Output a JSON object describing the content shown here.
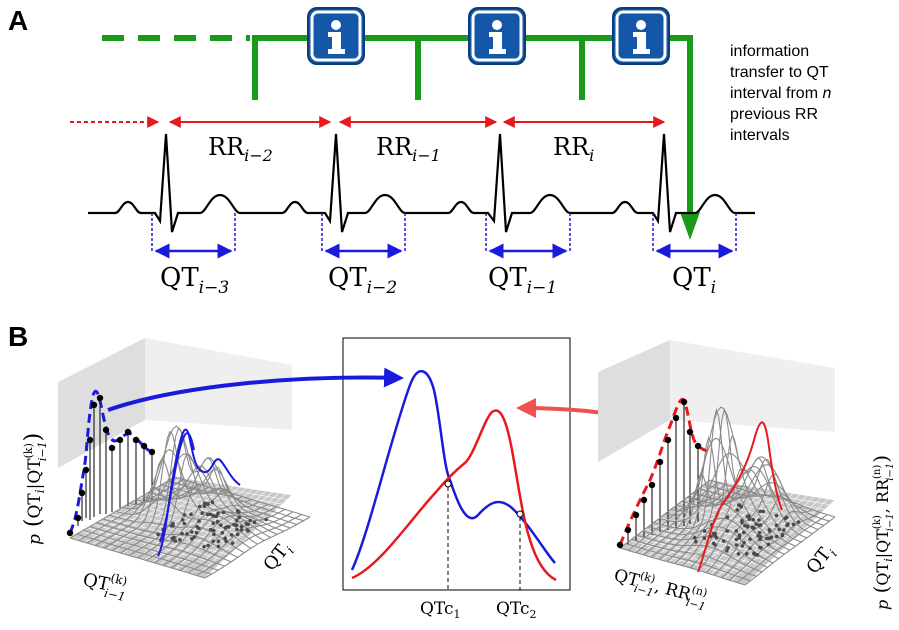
{
  "panel_a": {
    "label": "A",
    "info_icon_glyph": "i",
    "annotation_lines": [
      "information",
      "transfer to QT",
      "interval from ",
      "previous RR",
      "intervals"
    ],
    "annotation_n": "n",
    "rr_labels": [
      {
        "base": "RR",
        "sub": "i−2"
      },
      {
        "base": "RR",
        "sub": "i−1"
      },
      {
        "base": "RR",
        "sub": "i"
      }
    ],
    "qt_labels": [
      {
        "base": "QT",
        "sub": "i−3"
      },
      {
        "base": "QT",
        "sub": "i−2"
      },
      {
        "base": "QT",
        "sub": "i−1"
      },
      {
        "base": "QT",
        "sub": "i"
      }
    ],
    "colors": {
      "ecg": "#000000",
      "rr": "#e8191d",
      "qt": "#1a1adc",
      "info_path": "#1a9a1a",
      "info_icon": "#1457a8"
    }
  },
  "panel_b": {
    "label": "B",
    "left_ylabel": {
      "prefix": "p",
      "main": "QT",
      "main_sub": "i",
      "cond": "QT",
      "cond_sup": "(k)",
      "cond_sub": "i−1"
    },
    "left_xlabel": {
      "base": "QT",
      "sup": "(k)",
      "sub": "i−1"
    },
    "left_zlabel": {
      "base": "QT",
      "sub": "i"
    },
    "right_ylabel": {
      "prefix": "p",
      "main": "QT",
      "main_sub": "i",
      "cond1": "QT",
      "cond1_sup": "(k)",
      "cond1_sub": "i−1",
      "cond2": "RR",
      "cond2_sup": "(n)",
      "cond2_sub": "i−1"
    },
    "right_xlabel": {
      "base1": "QT",
      "sup1": "(k)",
      "sub1": "i−1",
      "base2": "RR",
      "sup2": "(n)",
      "sub2": "i−1"
    },
    "right_zlabel": {
      "base": "QT",
      "sub": "i"
    },
    "center_ticks": [
      {
        "base": "QTc",
        "sub": "1"
      },
      {
        "base": "QTc",
        "sub": "2"
      }
    ],
    "colors": {
      "blue": "#1a1adc",
      "red": "#e8191d",
      "surface": "#8a8a8a"
    }
  }
}
